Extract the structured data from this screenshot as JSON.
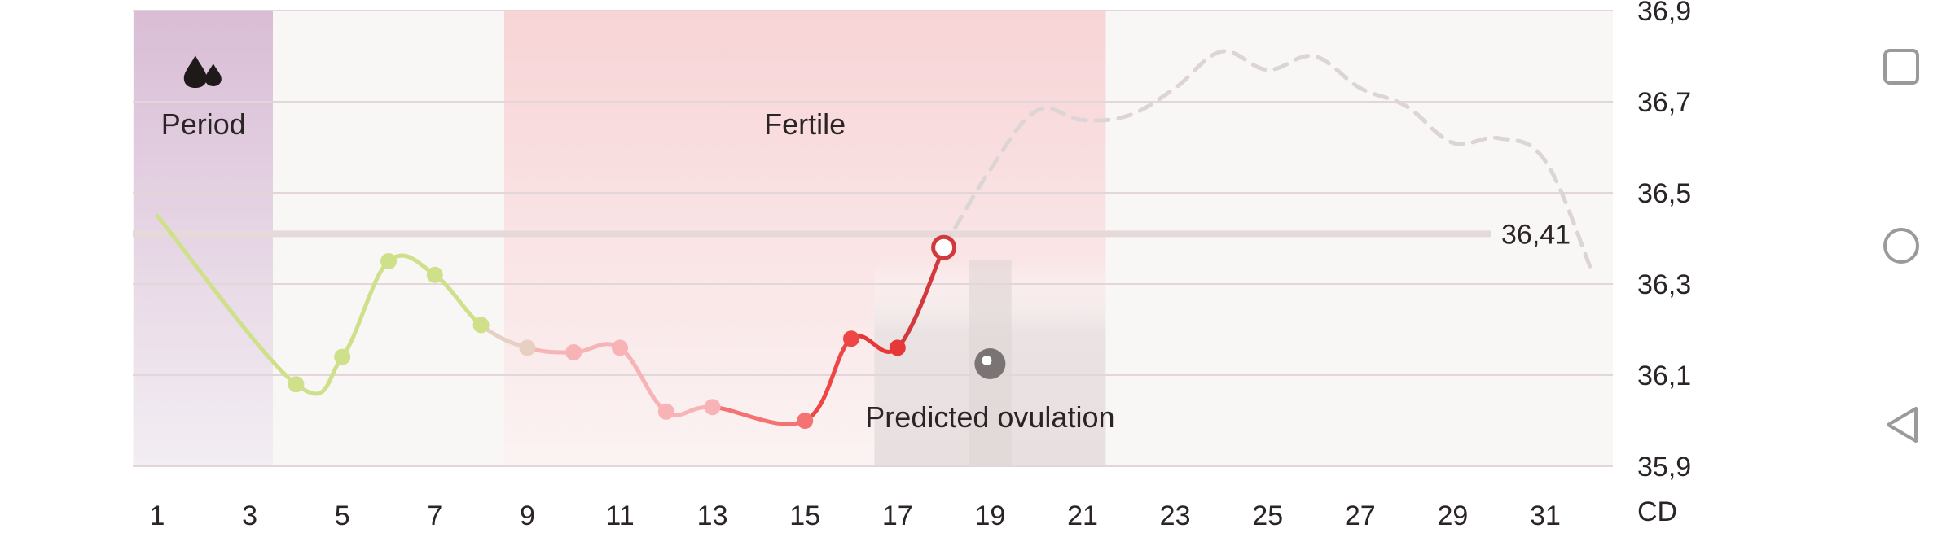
{
  "chart_data": {
    "type": "line",
    "title": "",
    "xlabel": "CD",
    "ylabel": "",
    "x_range": [
      1,
      33
    ],
    "ylim": [
      35.9,
      36.9
    ],
    "x_ticks": [
      1,
      3,
      5,
      7,
      9,
      11,
      13,
      15,
      17,
      19,
      21,
      23,
      25,
      27,
      29,
      31
    ],
    "x_tick_labels": [
      "1",
      "3",
      "5",
      "7",
      "9",
      "11",
      "13",
      "15",
      "17",
      "19",
      "21",
      "23",
      "25",
      "27",
      "29",
      "31"
    ],
    "y_ticks": [
      35.9,
      36.1,
      36.3,
      36.5,
      36.7,
      36.9
    ],
    "y_tick_labels": [
      "35,9",
      "36,1",
      "36,3",
      "36,5",
      "36,7",
      "36,9"
    ],
    "grid": true,
    "phases": [
      {
        "label": "Period",
        "icon": "drops-icon",
        "from": 1,
        "to": 4,
        "color": "#d8bcd6"
      },
      {
        "label": "Fertile",
        "icon": "",
        "from": 9,
        "to": 22,
        "color": "#f8d8da"
      },
      {
        "label": "Predicted ovulation",
        "icon": "egg-icon",
        "from": 17,
        "to": 22,
        "color": "#ece6e6"
      }
    ],
    "reference_line": {
      "value": 36.41,
      "label": "36,41",
      "color": "#e6d9d9"
    },
    "series": [
      {
        "name": "",
        "style": "solid",
        "points": [
          {
            "x": 1,
            "y": 36.45,
            "marker": false,
            "color": "#cfe08a"
          },
          {
            "x": 4,
            "y": 36.08,
            "marker": true,
            "color": "#cfe08a"
          },
          {
            "x": 5,
            "y": 36.14,
            "marker": true,
            "color": "#cfe08a"
          },
          {
            "x": 6,
            "y": 36.35,
            "marker": true,
            "color": "#cfe08a"
          },
          {
            "x": 7,
            "y": 36.32,
            "marker": true,
            "color": "#cfe08a"
          },
          {
            "x": 8,
            "y": 36.21,
            "marker": true,
            "color": "#cfe08a"
          },
          {
            "x": 9,
            "y": 36.16,
            "marker": true,
            "color": "#e8cfc4"
          },
          {
            "x": 10,
            "y": 36.15,
            "marker": true,
            "color": "#f7b3b6"
          },
          {
            "x": 11,
            "y": 36.16,
            "marker": true,
            "color": "#f7b3b6"
          },
          {
            "x": 12,
            "y": 36.02,
            "marker": true,
            "color": "#f7b3b6"
          },
          {
            "x": 13,
            "y": 36.03,
            "marker": true,
            "color": "#f7b3b6"
          },
          {
            "x": 15,
            "y": 36.0,
            "marker": true,
            "color": "#f57272"
          },
          {
            "x": 16,
            "y": 36.18,
            "marker": true,
            "color": "#ee4545"
          },
          {
            "x": 17,
            "y": 36.16,
            "marker": true,
            "color": "#e63838"
          },
          {
            "x": 18,
            "y": 36.38,
            "marker": "open",
            "color": "#d2393d"
          }
        ]
      },
      {
        "name": "",
        "style": "dashed",
        "color": "#ddd5d5",
        "points": [
          {
            "x": 18,
            "y": 36.38
          },
          {
            "x": 19,
            "y": 36.55
          },
          {
            "x": 20,
            "y": 36.68
          },
          {
            "x": 21,
            "y": 36.66
          },
          {
            "x": 22,
            "y": 36.67
          },
          {
            "x": 23,
            "y": 36.73
          },
          {
            "x": 24,
            "y": 36.81
          },
          {
            "x": 25,
            "y": 36.77
          },
          {
            "x": 26,
            "y": 36.8
          },
          {
            "x": 27,
            "y": 36.73
          },
          {
            "x": 28,
            "y": 36.69
          },
          {
            "x": 29,
            "y": 36.61
          },
          {
            "x": 30,
            "y": 36.62
          },
          {
            "x": 31,
            "y": 36.57
          },
          {
            "x": 32,
            "y": 36.33
          }
        ]
      }
    ]
  },
  "nav": {
    "buttons": [
      {
        "name": "recent-apps-button",
        "icon": "square-icon"
      },
      {
        "name": "home-button",
        "icon": "circle-icon"
      },
      {
        "name": "back-button",
        "icon": "triangle-back-icon"
      }
    ]
  }
}
